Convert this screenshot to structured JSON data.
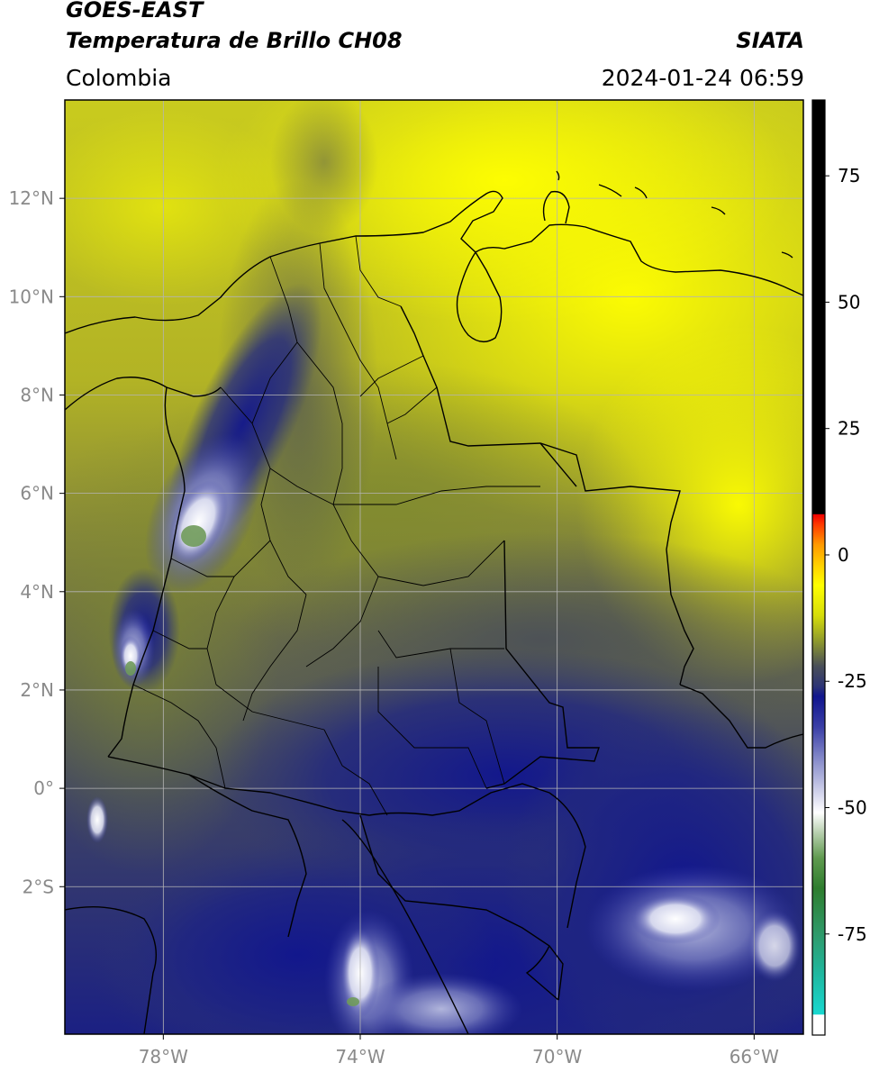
{
  "header": {
    "satellite": "GOES-EAST",
    "product": "Temperatura de Brillo CH08",
    "region": "Colombia",
    "source": "SIATA",
    "datetime": "2024-01-24 06:59"
  },
  "map": {
    "lon_range": [
      -80,
      -65
    ],
    "lat_range": [
      -5,
      14
    ],
    "lat_ticks": [
      {
        "value": 12,
        "label": "12°N"
      },
      {
        "value": 10,
        "label": "10°N"
      },
      {
        "value": 8,
        "label": "8°N"
      },
      {
        "value": 6,
        "label": "6°N"
      },
      {
        "value": 4,
        "label": "4°N"
      },
      {
        "value": 2,
        "label": "2°N"
      },
      {
        "value": 0,
        "label": "0°"
      },
      {
        "value": -2,
        "label": "2°S"
      }
    ],
    "lon_ticks": [
      {
        "value": -78,
        "label": "78°W"
      },
      {
        "value": -74,
        "label": "74°W"
      },
      {
        "value": -70,
        "label": "70°W"
      },
      {
        "value": -66,
        "label": "66°W"
      }
    ]
  },
  "colorbar": {
    "range": [
      -95,
      90
    ],
    "ticks": [
      {
        "value": 75,
        "label": "75"
      },
      {
        "value": 50,
        "label": "50"
      },
      {
        "value": 25,
        "label": "25"
      },
      {
        "value": 0,
        "label": "0"
      },
      {
        "value": -25,
        "label": "-25"
      },
      {
        "value": -50,
        "label": "-50"
      },
      {
        "value": -75,
        "label": "-75"
      }
    ],
    "stops": [
      {
        "value": -95,
        "color": "#ffffff"
      },
      {
        "value": -91,
        "color": "#ffffff"
      },
      {
        "value": -90.9,
        "color": "#19d8d0"
      },
      {
        "value": -83,
        "color": "#1eb8a0"
      },
      {
        "value": -75,
        "color": "#2f9a6a"
      },
      {
        "value": -66,
        "color": "#2e7d2e"
      },
      {
        "value": -60,
        "color": "#5f9a4f"
      },
      {
        "value": -55,
        "color": "#b7cfae"
      },
      {
        "value": -51,
        "color": "#ffffff"
      },
      {
        "value": -46,
        "color": "#c6c8e6"
      },
      {
        "value": -40,
        "color": "#8186c8"
      },
      {
        "value": -34,
        "color": "#3a3ea6"
      },
      {
        "value": -28,
        "color": "#10158e"
      },
      {
        "value": -26,
        "color": "#2d3475"
      },
      {
        "value": -22,
        "color": "#4a4f58"
      },
      {
        "value": -17,
        "color": "#8f9a2c"
      },
      {
        "value": -12,
        "color": "#d6dd0a"
      },
      {
        "value": -6,
        "color": "#ffff00"
      },
      {
        "value": -2,
        "color": "#ffd000"
      },
      {
        "value": 2,
        "color": "#ff9a00"
      },
      {
        "value": 6,
        "color": "#ff3a00"
      },
      {
        "value": 8,
        "color": "#f00000"
      },
      {
        "value": 8.1,
        "color": "#000000"
      },
      {
        "value": 90,
        "color": "#000000"
      }
    ]
  },
  "colors": {
    "cold_cloud": "#10158e",
    "warm_clear": "#ffff00",
    "mid": "#4a4f58",
    "borders": "#000000",
    "grid": "#b0b0b0"
  }
}
